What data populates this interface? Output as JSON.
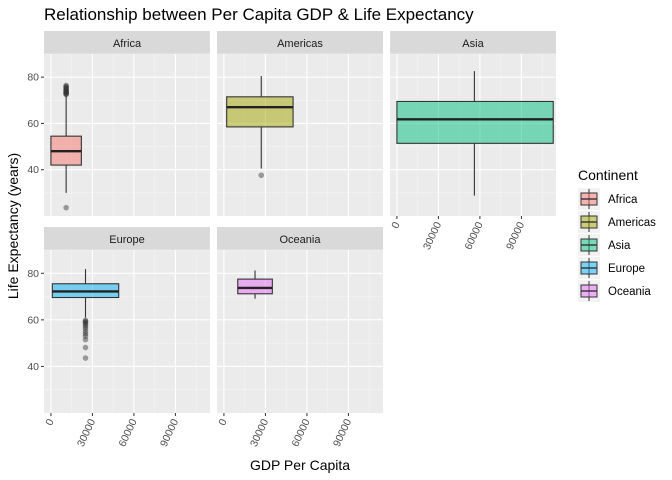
{
  "chart_data": {
    "type": "boxplot",
    "title": "Relationship between Per Capita GDP & Life Expectancy",
    "xlabel": "GDP Per Capita",
    "ylabel": "Life Expectancy (years)",
    "xlim": [
      -5000,
      115000
    ],
    "ylim": [
      20,
      90
    ],
    "x_ticks": [
      0,
      30000,
      60000,
      90000
    ],
    "x_tick_labels": [
      "0",
      "30000",
      "60000",
      "90000"
    ],
    "y_ticks": [
      40,
      60,
      80
    ],
    "y_tick_labels": [
      "40",
      "60",
      "80"
    ],
    "facets": [
      "Africa",
      "Americas",
      "Asia",
      "Europe",
      "Oceania"
    ],
    "legend": {
      "title": "Continent",
      "position": "right",
      "entries": [
        "Africa",
        "Americas",
        "Asia",
        "Europe",
        "Oceania"
      ]
    },
    "grid": true,
    "series": [
      {
        "name": "Africa",
        "color": "#f8766d",
        "x_range": [
          0,
          22000
        ],
        "whisker_x": 11000,
        "min": 30,
        "q1": 42,
        "median": 48,
        "q3": 54.5,
        "max": 72,
        "outliers": [
          23.6,
          72.5,
          72.8,
          73.0,
          73.2,
          73.5,
          73.8,
          74.0,
          74.4,
          74.8,
          75.2,
          75.6,
          76.0,
          76.4
        ]
      },
      {
        "name": "Americas",
        "color": "#a3a500",
        "x_range": [
          2000,
          50000
        ],
        "whisker_x": 27000,
        "min": 40.5,
        "q1": 58.5,
        "median": 67,
        "q3": 71.5,
        "max": 80.5,
        "outliers": [
          37.6
        ]
      },
      {
        "name": "Asia",
        "color": "#00bf7d",
        "x_range": [
          0,
          113000
        ],
        "whisker_x": 56000,
        "min": 28.8,
        "q1": 51.4,
        "median": 61.8,
        "q3": 69.5,
        "max": 82.6,
        "outliers": []
      },
      {
        "name": "Europe",
        "color": "#00b0f6",
        "x_range": [
          1000,
          49000
        ],
        "whisker_x": 25000,
        "min": 61,
        "q1": 69.6,
        "median": 72.2,
        "q3": 75.5,
        "max": 81.8,
        "outliers": [
          43.6,
          48.1,
          51.5,
          53.0,
          54.0,
          55.0,
          56.2,
          57.0,
          57.8,
          58.5,
          59.0,
          59.4,
          59.8
        ]
      },
      {
        "name": "Oceania",
        "color": "#e76bf3",
        "x_range": [
          10000,
          35000
        ],
        "whisker_x": 22500,
        "min": 69.1,
        "q1": 71.2,
        "median": 73.7,
        "q3": 77.5,
        "max": 81.2,
        "outliers": []
      }
    ]
  }
}
